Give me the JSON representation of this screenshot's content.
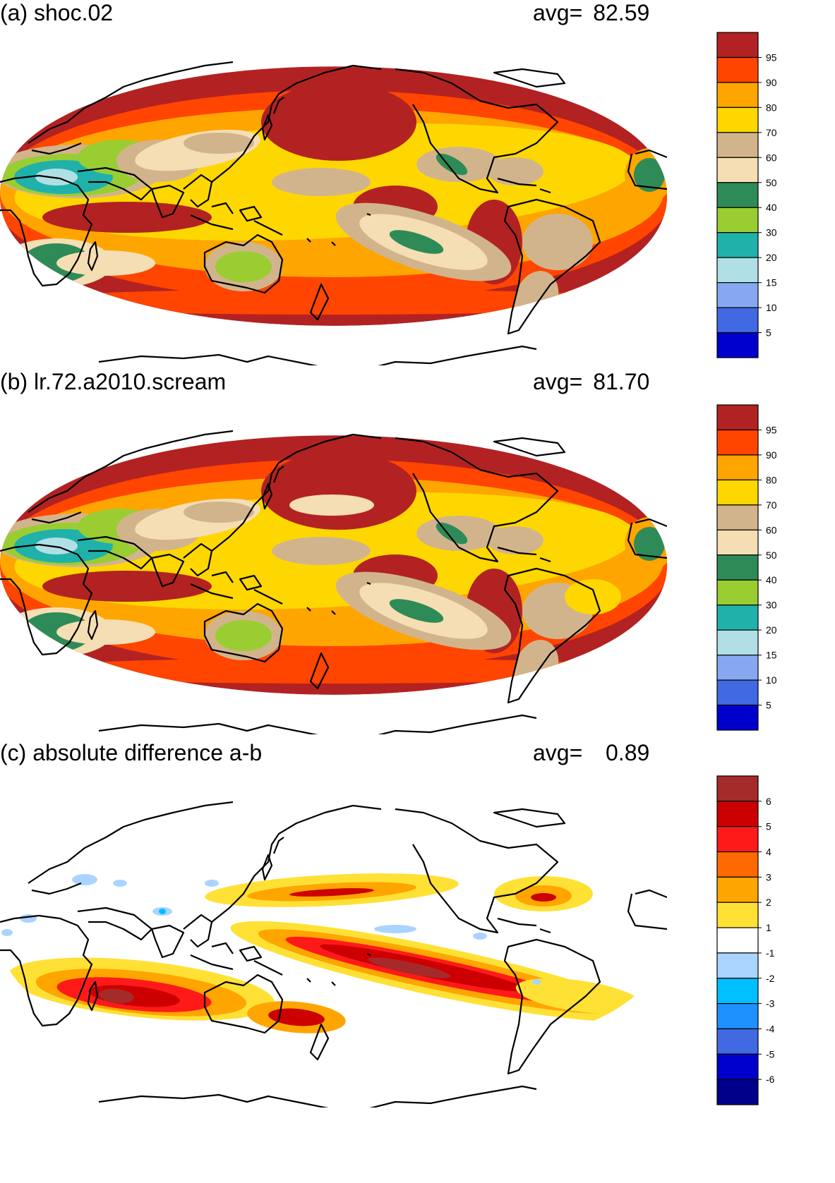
{
  "panels": [
    {
      "title": "(a) shoc.02",
      "avg_label": "avg=",
      "avg_value": "82.59",
      "colorbar": {
        "labels": [
          "95",
          "90",
          "80",
          "70",
          "60",
          "50",
          "40",
          "30",
          "20",
          "15",
          "10",
          "5"
        ],
        "colors": [
          "#b22222",
          "#ff4500",
          "#ffa500",
          "#ffd700",
          "#d2b48c",
          "#f5deb3",
          "#2e8b57",
          "#9acd32",
          "#20b2aa",
          "#b0e0e6",
          "#87a8f0",
          "#4169e1",
          "#0000cd"
        ]
      },
      "field": "model_a"
    },
    {
      "title": "(b) lr.72.a2010.scream",
      "avg_label": "avg=",
      "avg_value": "81.70",
      "colorbar": {
        "labels": [
          "95",
          "90",
          "80",
          "70",
          "60",
          "50",
          "40",
          "30",
          "20",
          "15",
          "10",
          "5"
        ],
        "colors": [
          "#b22222",
          "#ff4500",
          "#ffa500",
          "#ffd700",
          "#d2b48c",
          "#f5deb3",
          "#2e8b57",
          "#9acd32",
          "#20b2aa",
          "#b0e0e6",
          "#87a8f0",
          "#4169e1",
          "#0000cd"
        ]
      },
      "field": "model_b"
    },
    {
      "title": "(c) absolute difference a-b",
      "avg_label": "avg=",
      "avg_value": "0.89",
      "colorbar": {
        "labels": [
          "6",
          "5",
          "4",
          "3",
          "2",
          "1",
          "-1",
          "-2",
          "-3",
          "-4",
          "-5",
          "-6"
        ],
        "colors": [
          "#a52a2a",
          "#cc0000",
          "#ff1a1a",
          "#ff6a00",
          "#ffa500",
          "#ffe135",
          "#ffffff",
          "#aad4ff",
          "#00bfff",
          "#1e90ff",
          "#4169e1",
          "#0000cd",
          "#00008b"
        ]
      },
      "field": "difference"
    }
  ],
  "coastline_color": "#000000"
}
